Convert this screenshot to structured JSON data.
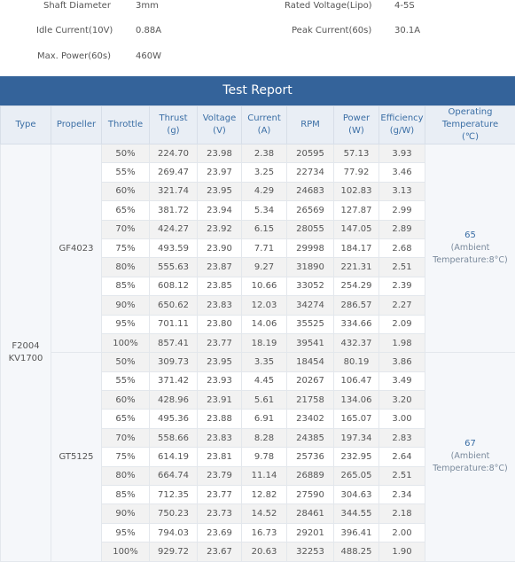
{
  "specs": {
    "shaft_diameter": {
      "label": "Shaft Diameter",
      "value": "3mm"
    },
    "rated_voltage": {
      "label": "Rated Voltage(Lipo)",
      "value": "4-5S"
    },
    "idle_current": {
      "label": "Idle Current(10V)",
      "value": "0.88A"
    },
    "peak_current": {
      "label": "Peak Current(60s)",
      "value": "30.1A"
    },
    "max_power": {
      "label": "Max. Power(60s)",
      "value": "460W"
    }
  },
  "report": {
    "title": "Test Report",
    "headers": {
      "type": "Type",
      "propeller": "Propeller",
      "throttle": "Throttle",
      "thrust": [
        "Thrust",
        "(g)"
      ],
      "voltage": [
        "Voltage",
        "(V)"
      ],
      "current": [
        "Current",
        "(A)"
      ],
      "rpm": "RPM",
      "power": [
        "Power",
        "(W)"
      ],
      "efficiency": [
        "Efficiency",
        "(g/W)"
      ],
      "temperature": [
        "Operating",
        "Temperature",
        "(℃)"
      ]
    },
    "type_label": [
      "F2004",
      "KV1700"
    ],
    "groups": [
      {
        "propeller": "GF4023",
        "temperature": "65",
        "temp_note": [
          "(Ambient",
          "Temperature:8°C)"
        ],
        "rows": [
          [
            "50%",
            "224.70",
            "23.98",
            "2.38",
            "20595",
            "57.13",
            "3.93"
          ],
          [
            "55%",
            "269.47",
            "23.97",
            "3.25",
            "22734",
            "77.92",
            "3.46"
          ],
          [
            "60%",
            "321.74",
            "23.95",
            "4.29",
            "24683",
            "102.83",
            "3.13"
          ],
          [
            "65%",
            "381.72",
            "23.94",
            "5.34",
            "26569",
            "127.87",
            "2.99"
          ],
          [
            "70%",
            "424.27",
            "23.92",
            "6.15",
            "28055",
            "147.05",
            "2.89"
          ],
          [
            "75%",
            "493.59",
            "23.90",
            "7.71",
            "29998",
            "184.17",
            "2.68"
          ],
          [
            "80%",
            "555.63",
            "23.87",
            "9.27",
            "31890",
            "221.31",
            "2.51"
          ],
          [
            "85%",
            "608.12",
            "23.85",
            "10.66",
            "33052",
            "254.29",
            "2.39"
          ],
          [
            "90%",
            "650.62",
            "23.83",
            "12.03",
            "34274",
            "286.57",
            "2.27"
          ],
          [
            "95%",
            "701.11",
            "23.80",
            "14.06",
            "35525",
            "334.66",
            "2.09"
          ],
          [
            "100%",
            "857.41",
            "23.77",
            "18.19",
            "39541",
            "432.37",
            "1.98"
          ]
        ]
      },
      {
        "propeller": "GT5125",
        "temperature": "67",
        "temp_note": [
          "(Ambient",
          "Temperature:8°C)"
        ],
        "rows": [
          [
            "50%",
            "309.73",
            "23.95",
            "3.35",
            "18454",
            "80.19",
            "3.86"
          ],
          [
            "55%",
            "371.42",
            "23.93",
            "4.45",
            "20267",
            "106.47",
            "3.49"
          ],
          [
            "60%",
            "428.96",
            "23.91",
            "5.61",
            "21758",
            "134.06",
            "3.20"
          ],
          [
            "65%",
            "495.36",
            "23.88",
            "6.91",
            "23402",
            "165.07",
            "3.00"
          ],
          [
            "70%",
            "558.66",
            "23.83",
            "8.28",
            "24385",
            "197.34",
            "2.83"
          ],
          [
            "75%",
            "614.19",
            "23.81",
            "9.78",
            "25736",
            "232.95",
            "2.64"
          ],
          [
            "80%",
            "664.74",
            "23.79",
            "11.14",
            "26889",
            "265.05",
            "2.51"
          ],
          [
            "85%",
            "712.35",
            "23.77",
            "12.82",
            "27590",
            "304.63",
            "2.34"
          ],
          [
            "90%",
            "750.23",
            "23.73",
            "14.52",
            "28461",
            "344.55",
            "2.18"
          ],
          [
            "95%",
            "794.03",
            "23.69",
            "16.73",
            "29201",
            "396.41",
            "2.00"
          ],
          [
            "100%",
            "929.72",
            "23.67",
            "20.63",
            "32253",
            "488.25",
            "1.90"
          ]
        ]
      }
    ]
  },
  "colors": {
    "title_bar": "#34639a",
    "header_bg": "#e9eef5",
    "header_text": "#3a6ea5",
    "row_alt": "#f2f2f2"
  }
}
